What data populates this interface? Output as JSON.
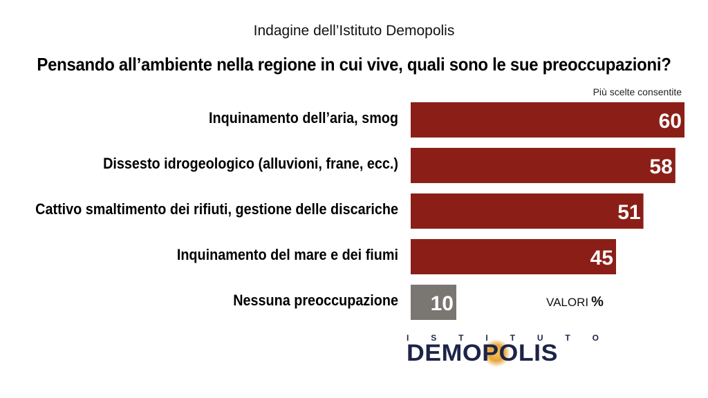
{
  "header": {
    "subtitle": "Indagine dell’Istituto Demopolis",
    "title": "Pensando all’ambiente nella regione in cui vive, quali sono le sue preoccupazioni?",
    "note": "Più scelte consentite"
  },
  "footer": {
    "valori_label": "VALORI",
    "valori_unit": "%",
    "logo_top": [
      "I",
      "S",
      "T",
      "I",
      "T",
      "U",
      "T",
      "O"
    ],
    "logo_main": "DEMOPOLIS"
  },
  "chart_data": {
    "type": "bar",
    "orientation": "horizontal",
    "categories": [
      "Inquinamento dell’aria, smog",
      "Dissesto idrogeologico (alluvioni, frane, ecc.)",
      "Cattivo smaltimento dei rifiuti, gestione delle discariche",
      "Inquinamento del mare e dei fiumi",
      "Nessuna preoccupazione"
    ],
    "values": [
      60,
      58,
      51,
      45,
      10
    ],
    "colors": [
      "#8b1f18",
      "#8b1f18",
      "#8b1f18",
      "#8b1f18",
      "#7a7672"
    ],
    "unit": "%",
    "xlim": [
      0,
      60
    ],
    "grid": false,
    "legend": "none"
  }
}
